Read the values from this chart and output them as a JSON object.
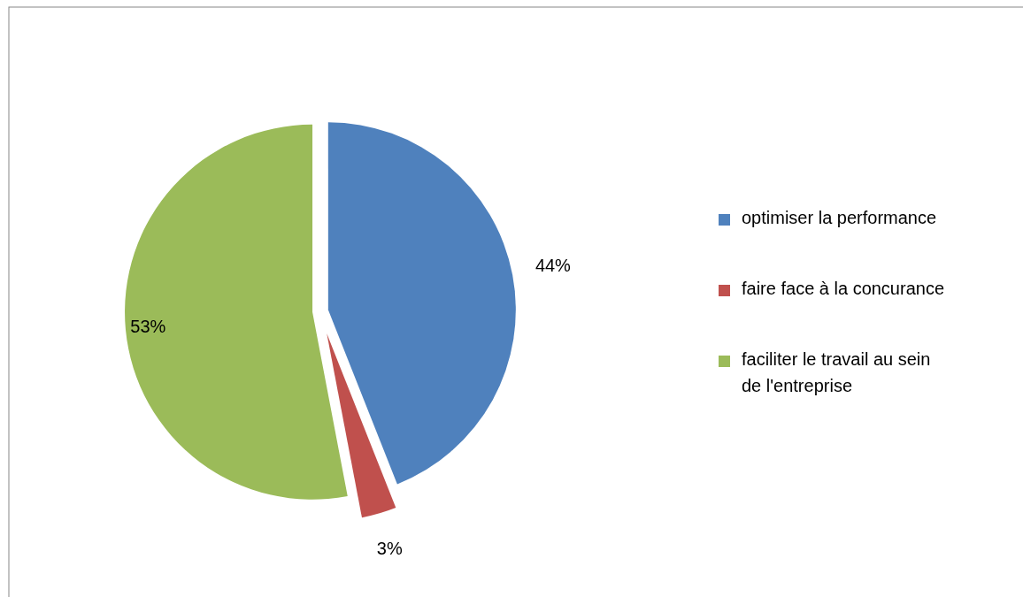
{
  "chart_data": {
    "type": "pie",
    "categories": [
      "optimiser la performance",
      "faire face à la concurance",
      "faciliter le travail au sein de l'entreprise"
    ],
    "values": [
      44,
      3,
      53
    ],
    "colors": [
      "#4f81bd",
      "#c0504d",
      "#9bbb59"
    ],
    "value_labels": [
      "44%",
      "3%",
      "53%"
    ],
    "legend": "right"
  }
}
